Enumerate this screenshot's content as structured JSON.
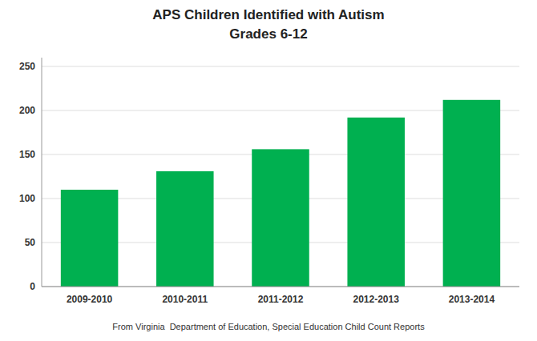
{
  "chart_data": {
    "type": "bar",
    "title": "APS Children Identified with Autism",
    "subtitle": "Grades 6-12",
    "caption": "From Virginia  Department of Education, Special Education Child Count Reports",
    "categories": [
      "2009-2010",
      "2010-2011",
      "2011-2012",
      "2012-2013",
      "2013-2014"
    ],
    "values": [
      110,
      131,
      156,
      192,
      212
    ],
    "color": "#00b050",
    "ylim": [
      0,
      260
    ],
    "yticks": [
      0,
      50,
      100,
      150,
      200,
      250
    ],
    "grid": true
  }
}
